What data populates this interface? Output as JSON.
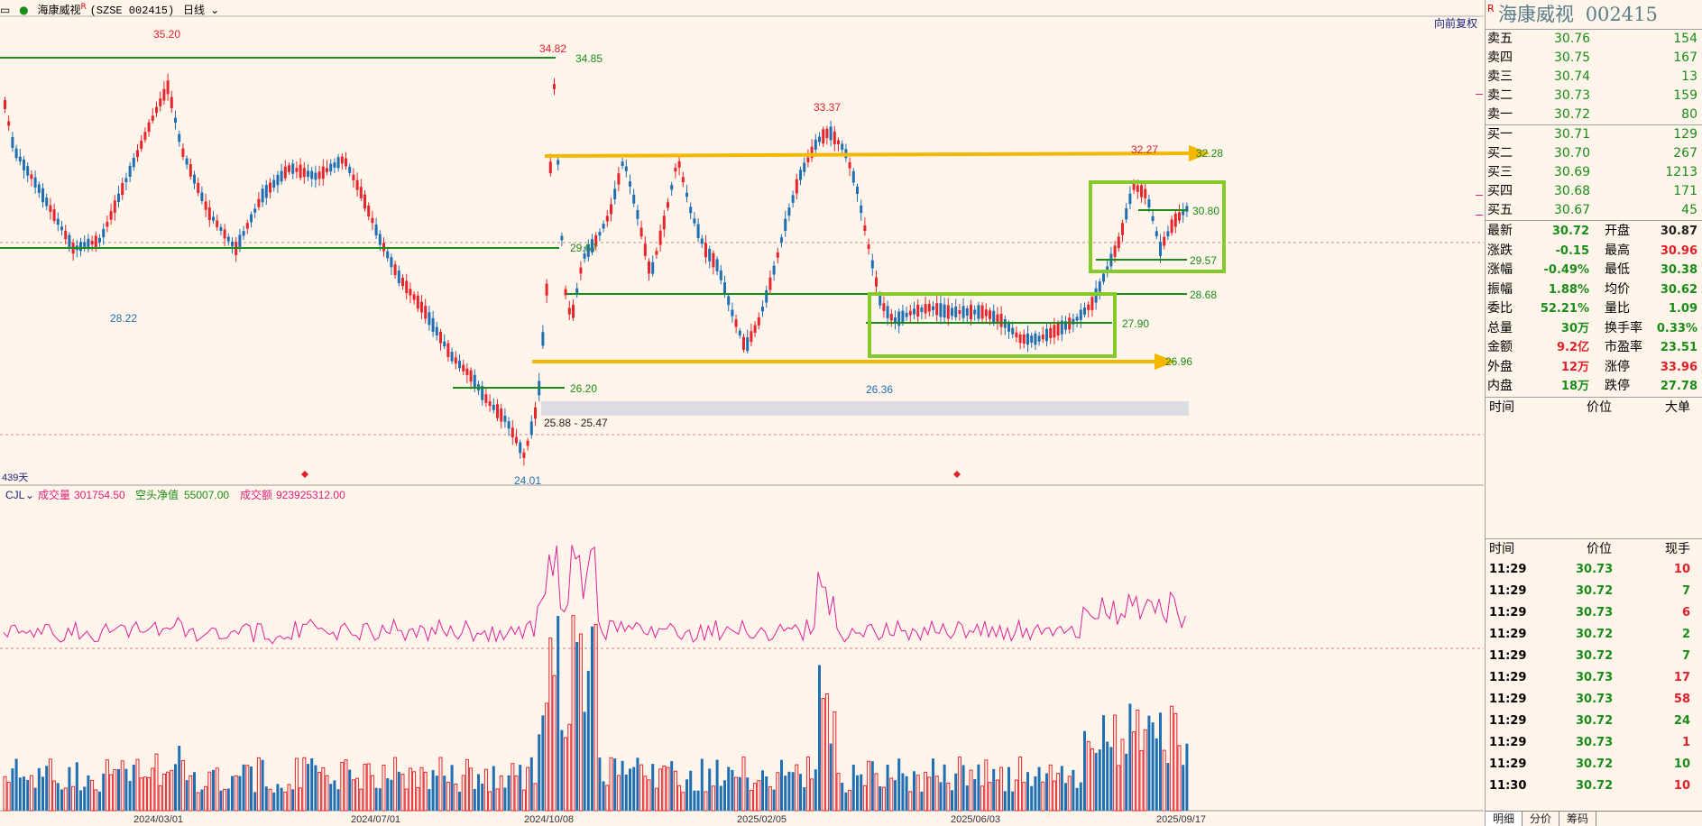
{
  "titlebar": {
    "menu_icon": "ellipsis-icon",
    "stock_name": "海康威视",
    "r_mark": "R",
    "code": "(SZSE 002415)",
    "period": "日线"
  },
  "chart": {
    "direction_label": "向前复权",
    "days_label": "439天",
    "x_ticks": [
      "2024/03/01",
      "2024/07/01",
      "2024/10/08",
      "2025/02/05",
      "2025/06/03",
      "2025/09/17"
    ],
    "price_labels": {
      "high1": "35.20",
      "low1": "28.22",
      "spike": "34.82",
      "spike_line": "34.85",
      "high2": "33.37",
      "right_high": "32.27",
      "arrow_top": "32.28",
      "box_top": "30.80",
      "mid_left": "29.67",
      "r_2957": "29.57",
      "r_2868": "28.68",
      "r_2790": "27.90",
      "arrow_bottom": "26.96",
      "low_2636": "26.36",
      "s_2620": "26.20",
      "zone": "25.88 - 25.47",
      "low_2401": "24.01"
    },
    "indicator_name": "CJL",
    "indicator": {
      "vol_label": "成交量",
      "vol_value": "301754.50",
      "net_label": "空头净值",
      "net_value": "55007.00",
      "amt_label": "成交额",
      "amt_value": "923925312.00"
    },
    "colors": {
      "up": "#e8252d",
      "down": "#1f6fb5",
      "green_line": "#1a8c1a",
      "yellow": "#f5b800",
      "lime": "#86c92a",
      "pink": "#e0209a"
    }
  },
  "right_panel": {
    "r_mark": "R",
    "name": "海康威视",
    "code": "002415",
    "asks": [
      {
        "label": "卖五",
        "price": "30.76",
        "vol": "154"
      },
      {
        "label": "卖四",
        "price": "30.75",
        "vol": "167"
      },
      {
        "label": "卖三",
        "price": "30.74",
        "vol": "13"
      },
      {
        "label": "卖二",
        "price": "30.73",
        "vol": "159"
      },
      {
        "label": "卖一",
        "price": "30.72",
        "vol": "80"
      }
    ],
    "bids": [
      {
        "label": "买一",
        "price": "30.71",
        "vol": "129"
      },
      {
        "label": "买二",
        "price": "30.70",
        "vol": "267"
      },
      {
        "label": "买三",
        "price": "30.69",
        "vol": "1213"
      },
      {
        "label": "买四",
        "price": "30.68",
        "vol": "171"
      },
      {
        "label": "买五",
        "price": "30.67",
        "vol": "45"
      }
    ],
    "stats": [
      {
        "l1": "最新",
        "v1": "30.72",
        "c1": "green",
        "l2": "开盘",
        "v2": "30.87",
        "c2": "black"
      },
      {
        "l1": "涨跌",
        "v1": "-0.15",
        "c1": "green",
        "l2": "最高",
        "v2": "30.96",
        "c2": "red"
      },
      {
        "l1": "涨幅",
        "v1": "-0.49%",
        "c1": "green",
        "l2": "最低",
        "v2": "30.38",
        "c2": "green"
      },
      {
        "l1": "振幅",
        "v1": "1.88%",
        "c1": "green",
        "l2": "均价",
        "v2": "30.62",
        "c2": "green"
      },
      {
        "l1": "委比",
        "v1": "52.21%",
        "c1": "green",
        "l2": "量比",
        "v2": "1.09",
        "c2": "green"
      },
      {
        "l1": "总量",
        "v1": "30万",
        "c1": "green",
        "l2": "换手率",
        "v2": "0.33%",
        "c2": "green"
      },
      {
        "l1": "金额",
        "v1": "9.2亿",
        "c1": "red",
        "l2": "市盈率",
        "v2": "23.51",
        "c2": "green"
      },
      {
        "l1": "外盘",
        "v1": "12万",
        "c1": "red",
        "l2": "涨停",
        "v2": "33.96",
        "c2": "red"
      },
      {
        "l1": "内盘",
        "v1": "18万",
        "c1": "green",
        "l2": "跌停",
        "v2": "27.78",
        "c2": "green"
      }
    ],
    "big_header": {
      "c1": "时间",
      "c2": "价位",
      "c3": "大单"
    },
    "tick_header": {
      "c1": "时间",
      "c2": "价位",
      "c3": "现手"
    },
    "ticks": [
      {
        "t": "11:29",
        "p": "30.73",
        "v": "10",
        "c": "red"
      },
      {
        "t": "11:29",
        "p": "30.72",
        "v": "7",
        "c": "green"
      },
      {
        "t": "11:29",
        "p": "30.73",
        "v": "6",
        "c": "red"
      },
      {
        "t": "11:29",
        "p": "30.72",
        "v": "2",
        "c": "green"
      },
      {
        "t": "11:29",
        "p": "30.72",
        "v": "7",
        "c": "green"
      },
      {
        "t": "11:29",
        "p": "30.73",
        "v": "17",
        "c": "red"
      },
      {
        "t": "11:29",
        "p": "30.73",
        "v": "58",
        "c": "red"
      },
      {
        "t": "11:29",
        "p": "30.72",
        "v": "24",
        "c": "green"
      },
      {
        "t": "11:29",
        "p": "30.73",
        "v": "1",
        "c": "red"
      },
      {
        "t": "11:29",
        "p": "30.72",
        "v": "10",
        "c": "green"
      },
      {
        "t": "11:30",
        "p": "30.72",
        "v": "10",
        "c": "red"
      }
    ],
    "tabs": [
      "明细",
      "分价",
      "筹码"
    ]
  }
}
